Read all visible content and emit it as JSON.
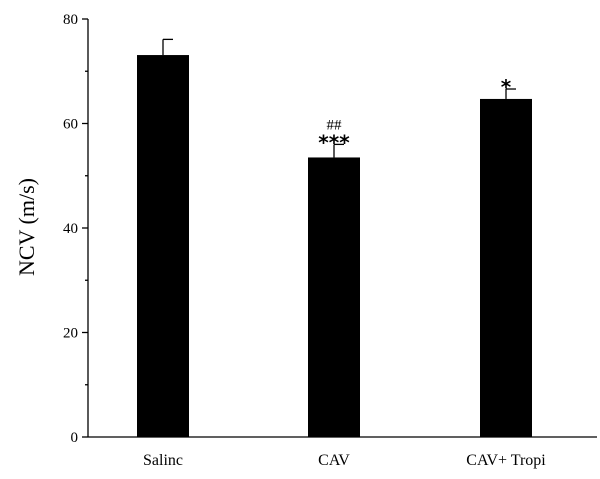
{
  "chart_data": {
    "type": "bar",
    "categories": [
      "Salinc",
      "CAV",
      "CAV+ Tropi"
    ],
    "values": [
      73.1,
      53.5,
      64.7
    ],
    "errors": [
      3.0,
      2.5,
      1.9
    ],
    "annotations": [
      {
        "category": "Salinc",
        "lines": []
      },
      {
        "category": "CAV",
        "lines": [
          "##",
          "***"
        ]
      },
      {
        "category": "CAV+ Tropi",
        "lines": [
          "*"
        ]
      }
    ],
    "title": "",
    "xlabel": "",
    "ylabel": "NCV (m/s)",
    "ylim": [
      0,
      80
    ],
    "yticks": [
      0,
      20,
      40,
      60,
      80
    ],
    "grid": false,
    "bar_color": "#000000"
  }
}
